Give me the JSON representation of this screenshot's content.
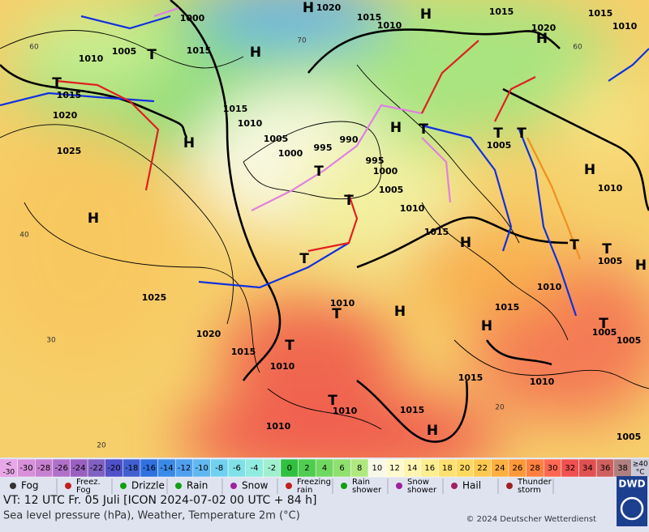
{
  "map_labels": [
    "H",
    "1020",
    "1000",
    "1015",
    "1010",
    "H",
    "1015",
    "1015",
    "1010",
    "1020",
    "H",
    "1005",
    "T",
    "1015",
    "1010",
    "H",
    "T",
    "1015",
    "1020",
    "1015",
    "1010",
    "H",
    "1005",
    "1000",
    "995",
    "990",
    "H",
    "T",
    "T",
    "T",
    "1005",
    "1025",
    "995",
    "T",
    "1000",
    "H",
    "1010",
    "1005",
    "T",
    "1010",
    "H",
    "1015",
    "H",
    "T",
    "T",
    "1005",
    "H",
    "T",
    "1010",
    "1025",
    "1010",
    "T",
    "H",
    "1015",
    "H",
    "1020",
    "1005",
    "T",
    "1015",
    "T",
    "1010",
    "1005",
    "1015",
    "1010",
    "T",
    "1010",
    "1015",
    "1010",
    "H",
    "1005",
    "60",
    "40",
    "30",
    "20",
    "60",
    "70",
    "20"
  ],
  "temperature_scale": {
    "low_label": [
      "<",
      "-30"
    ],
    "low_color": "#e8a8e8",
    "high_label": [
      "≥40",
      "°C"
    ],
    "high_color": "#c8c8d8",
    "values": [
      -30,
      -28,
      -26,
      -24,
      -22,
      -20,
      -18,
      -16,
      -14,
      -12,
      -10,
      -8,
      -6,
      -4,
      -2,
      0,
      2,
      4,
      6,
      8,
      10,
      12,
      14,
      16,
      18,
      20,
      22,
      24,
      26,
      28,
      30,
      32,
      34,
      36,
      38
    ],
    "colors": [
      "#d890d8",
      "#c880d0",
      "#b070c8",
      "#9a60c0",
      "#8060c0",
      "#5050c8",
      "#4060d0",
      "#3070e0",
      "#3a8ae8",
      "#50a0f0",
      "#60b8f0",
      "#70d0f0",
      "#80e0e8",
      "#90ece0",
      "#a0f0d0",
      "#30c040",
      "#50cc50",
      "#70d860",
      "#90e070",
      "#b0e880",
      "#f8f8e8",
      "#fffacd",
      "#fff5b0",
      "#ffee90",
      "#ffe070",
      "#ffd860",
      "#ffc850",
      "#ffb040",
      "#ff9838",
      "#ff8040",
      "#ff6850",
      "#f05050",
      "#e05050",
      "#d06060",
      "#b08080"
    ]
  },
  "legend": [
    {
      "label": [
        "Fog"
      ]
    },
    {
      "label": [
        "Freez.",
        "Fog"
      ]
    },
    {
      "label": [
        "Drizzle"
      ]
    },
    {
      "label": [
        "Rain"
      ]
    },
    {
      "label": [
        "Snow"
      ]
    },
    {
      "label": [
        "Freezing",
        "rain"
      ]
    },
    {
      "label": [
        "Rain",
        "shower"
      ]
    },
    {
      "label": [
        "Snow",
        "shower"
      ]
    },
    {
      "label": [
        "Hail"
      ]
    },
    {
      "label": [
        "Thunder",
        "storm"
      ]
    }
  ],
  "footer": {
    "valid_time": "VT: 12 UTC Fr.  05 Juli [ICON 2024-07-02  00 UTC + 84 h]",
    "description": "Sea level pressure (hPa), Weather, Temperature 2m (°C)",
    "copyright": "© 2024 Deutscher Wetterdienst",
    "logo": "DWD"
  }
}
